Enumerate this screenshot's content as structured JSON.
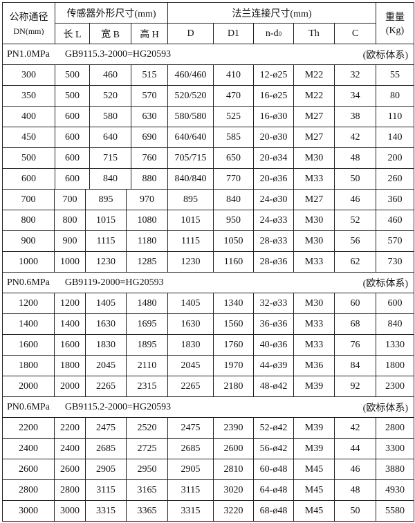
{
  "header": {
    "dn_title": "公称通径",
    "dn_unit": "DN(mm)",
    "sensor_group": "传感器外形尺寸(mm)",
    "flange_group": "法兰连接尺寸(mm)",
    "weight_title": "重量",
    "weight_unit": "(Kg)",
    "columns": [
      "长 L",
      "宽 B",
      "高 H",
      "D",
      "D1",
      "n-d",
      "Th",
      "C"
    ],
    "nd_subscript": "0"
  },
  "sections": [
    {
      "pressure": "PN1.0MPa",
      "standard": "GB9115.3-2000=HG20593",
      "system": "(欧标体系)",
      "rows": [
        [
          "300",
          "500",
          "460",
          "515",
          "460/460",
          "410",
          "12-ø25",
          "M22",
          "32",
          "55"
        ],
        [
          "350",
          "500",
          "520",
          "570",
          "520/520",
          "470",
          "16-ø25",
          "M22",
          "34",
          "80"
        ],
        [
          "400",
          "600",
          "580",
          "630",
          "580/580",
          "525",
          "16-ø30",
          "M27",
          "38",
          "110"
        ],
        [
          "450",
          "600",
          "640",
          "690",
          "640/640",
          "585",
          "20-ø30",
          "M27",
          "42",
          "140"
        ],
        [
          "500",
          "600",
          "715",
          "760",
          "705/715",
          "650",
          "20-ø34",
          "M30",
          "48",
          "200"
        ],
        [
          "600",
          "600",
          "840",
          "880",
          "840/840",
          "770",
          "20-ø36",
          "M33",
          "50",
          "260"
        ],
        [
          "700",
          "700",
          "895",
          "970",
          "895",
          "840",
          "24-ø30",
          "M27",
          "46",
          "360"
        ],
        [
          "800",
          "800",
          "1015",
          "1080",
          "1015",
          "950",
          "24-ø33",
          "M30",
          "52",
          "460"
        ],
        [
          "900",
          "900",
          "1115",
          "1180",
          "1115",
          "1050",
          "28-ø33",
          "M30",
          "56",
          "570"
        ],
        [
          "1000",
          "1000",
          "1230",
          "1285",
          "1230",
          "1160",
          "28-ø36",
          "M33",
          "62",
          "730"
        ]
      ]
    },
    {
      "pressure": "PN0.6MPa",
      "standard": "GB9119-2000=HG20593",
      "system": "(欧标体系)",
      "rows": [
        [
          "1200",
          "1200",
          "1405",
          "1480",
          "1405",
          "1340",
          "32-ø33",
          "M30",
          "60",
          "600"
        ],
        [
          "1400",
          "1400",
          "1630",
          "1695",
          "1630",
          "1560",
          "36-ø36",
          "M33",
          "68",
          "840"
        ],
        [
          "1600",
          "1600",
          "1830",
          "1895",
          "1830",
          "1760",
          "40-ø36",
          "M33",
          "76",
          "1330"
        ],
        [
          "1800",
          "1800",
          "2045",
          "2110",
          "2045",
          "1970",
          "44-ø39",
          "M36",
          "84",
          "1800"
        ],
        [
          "2000",
          "2000",
          "2265",
          "2315",
          "2265",
          "2180",
          "48-ø42",
          "M39",
          "92",
          "2300"
        ]
      ]
    },
    {
      "pressure": "PN0.6MPa",
      "standard": "GB9115.2-2000=HG20593",
      "system": "(欧标体系)",
      "rows": [
        [
          "2200",
          "2200",
          "2475",
          "2520",
          "2475",
          "2390",
          "52-ø42",
          "M39",
          "42",
          "2800"
        ],
        [
          "2400",
          "2400",
          "2685",
          "2725",
          "2685",
          "2600",
          "56-ø42",
          "M39",
          "44",
          "3300"
        ],
        [
          "2600",
          "2600",
          "2905",
          "2950",
          "2905",
          "2810",
          "60-ø48",
          "M45",
          "46",
          "3880"
        ],
        [
          "2800",
          "2800",
          "3115",
          "3165",
          "3115",
          "3020",
          "64-ø48",
          "M45",
          "48",
          "4930"
        ],
        [
          "3000",
          "3000",
          "3315",
          "3365",
          "3315",
          "3220",
          "68-ø48",
          "M45",
          "50",
          "5580"
        ]
      ]
    }
  ]
}
